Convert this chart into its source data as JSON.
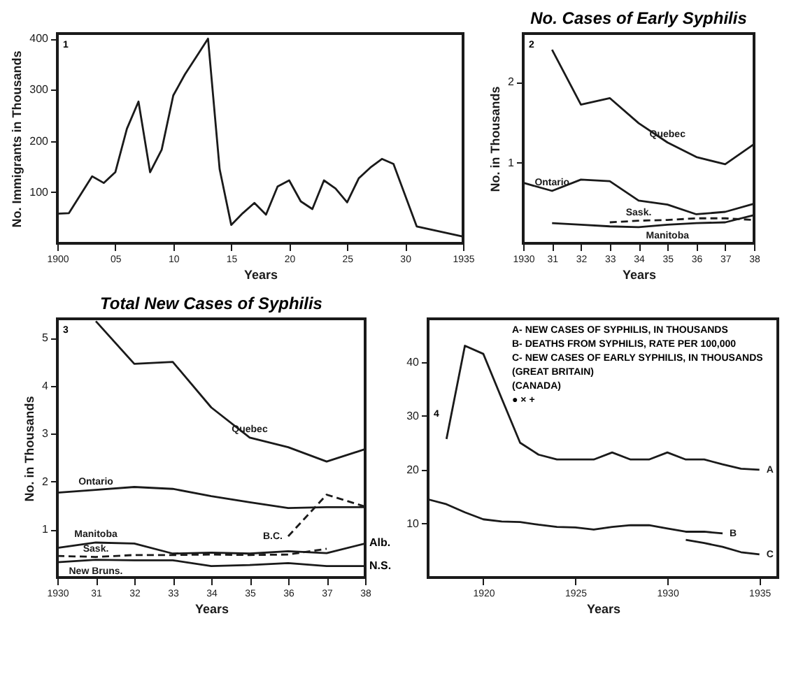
{
  "chart_data": [
    {
      "type": "line",
      "xlabel": "Years",
      "ylabel": "No. Immigrants in Thousands",
      "xlim": [
        1900,
        1935
      ],
      "ylim": [
        0,
        410
      ],
      "xticks": [
        1900,
        {
          "value": 1905,
          "label": "05"
        },
        {
          "value": 1910,
          "label": "10"
        },
        {
          "value": 1915,
          "label": "15"
        },
        {
          "value": 1920,
          "label": "20"
        },
        {
          "value": 1925,
          "label": "25"
        },
        {
          "value": 1930,
          "label": "30"
        },
        1935
      ],
      "yticks": [
        100,
        200,
        300,
        400
      ],
      "annotations": [
        "1"
      ],
      "series": [
        {
          "color": "#1a1a1a",
          "x": [
            1900,
            1901,
            1903,
            1904,
            1905,
            1906,
            1907,
            1908,
            1909,
            1910,
            1911,
            1912,
            1913,
            1914,
            1915,
            1916,
            1917,
            1918,
            1919,
            1920,
            1921,
            1922,
            1923,
            1924,
            1925,
            1926,
            1927,
            1928,
            1929,
            1931,
            1935
          ],
          "values": [
            58,
            59,
            131,
            118,
            139,
            224,
            277,
            139,
            183,
            289,
            330,
            365,
            400,
            145,
            36,
            59,
            79,
            56,
            111,
            123,
            82,
            67,
            123,
            107,
            80,
            127,
            148,
            165,
            155,
            33,
            13
          ]
        }
      ]
    },
    {
      "type": "line",
      "title": "No. Cases of Early Syphilis",
      "xlabel": "Years",
      "ylabel": "No. in Thousands",
      "xlim": [
        1930,
        1938
      ],
      "ylim": [
        0,
        2.6
      ],
      "xticks": [
        1930,
        {
          "value": 1931,
          "label": "31"
        },
        {
          "value": 1932,
          "label": "32"
        },
        {
          "value": 1933,
          "label": "33"
        },
        {
          "value": 1934,
          "label": "34"
        },
        {
          "value": 1935,
          "label": "35"
        },
        {
          "value": 1936,
          "label": "36"
        },
        {
          "value": 1937,
          "label": "37"
        },
        {
          "value": 1938,
          "label": "38"
        }
      ],
      "yticks": [
        1,
        2
      ],
      "annotations": [
        "2"
      ],
      "series": [
        {
          "name": "Quebec",
          "color": "#1a1a1a",
          "x": [
            1931,
            1932,
            1933,
            1934,
            1935,
            1936,
            1937,
            1938
          ],
          "values": [
            2.4,
            1.72,
            1.8,
            1.49,
            1.25,
            1.07,
            0.98,
            1.23
          ]
        },
        {
          "name": "Ontario",
          "color": "#1a1a1a",
          "x": [
            1930,
            1931,
            1932,
            1933,
            1934,
            1935,
            1936,
            1937,
            1938
          ],
          "values": [
            0.75,
            0.65,
            0.79,
            0.77,
            0.53,
            0.48,
            0.36,
            0.39,
            0.49
          ]
        },
        {
          "name": "Manitoba",
          "color": "#1a1a1a",
          "x": [
            1931,
            1932,
            1933,
            1934,
            1935,
            1936,
            1937,
            1938
          ],
          "values": [
            0.25,
            0.23,
            0.21,
            0.2,
            0.23,
            0.25,
            0.26,
            0.35
          ]
        },
        {
          "name": "Sask.",
          "color": "#1a1a1a",
          "line_style": "dashed",
          "x": [
            1933,
            1934,
            1935,
            1936,
            1937,
            1938
          ],
          "values": [
            0.26,
            0.28,
            0.29,
            0.31,
            0.31,
            0.29
          ]
        }
      ]
    },
    {
      "type": "line",
      "title": "Total New Cases of Syphilis",
      "xlabel": "Years",
      "ylabel": "No. in Thousands",
      "xlim": [
        1930,
        1938
      ],
      "ylim": [
        0,
        5.4
      ],
      "xticks": [
        1930,
        {
          "value": 1931,
          "label": "31"
        },
        {
          "value": 1932,
          "label": "32"
        },
        {
          "value": 1933,
          "label": "33"
        },
        {
          "value": 1934,
          "label": "34"
        },
        {
          "value": 1935,
          "label": "35"
        },
        {
          "value": 1936,
          "label": "36"
        },
        {
          "value": 1937,
          "label": "37"
        },
        {
          "value": 1938,
          "label": "38"
        }
      ],
      "yticks": [
        1,
        2,
        3,
        4,
        5
      ],
      "annotations": [
        "3",
        {
          "text": "Alb.",
          "x": 1938,
          "y": 0.71
        },
        {
          "text": "N.S.",
          "x": 1938,
          "y": 0.24
        }
      ],
      "series": [
        {
          "name": "Quebec",
          "color": "#1a1a1a",
          "x": [
            1931,
            1932,
            1933,
            1934,
            1935,
            1936,
            1937,
            1938
          ],
          "values": [
            5.35,
            4.46,
            4.5,
            3.55,
            2.92,
            2.72,
            2.42,
            2.68
          ]
        },
        {
          "name": "Ontario",
          "color": "#1a1a1a",
          "x": [
            1930,
            1931,
            1932,
            1933,
            1934,
            1935,
            1936,
            1937,
            1938
          ],
          "values": [
            1.77,
            1.83,
            1.89,
            1.85,
            1.7,
            1.57,
            1.45,
            1.47,
            1.47
          ]
        },
        {
          "name": "B.C.",
          "color": "#1a1a1a",
          "line_style": "dashed",
          "x": [
            1936,
            1937,
            1938
          ],
          "values": [
            0.86,
            1.73,
            1.48
          ]
        },
        {
          "name": "Manitoba",
          "color": "#1a1a1a",
          "x": [
            1930,
            1931,
            1932,
            1933,
            1934,
            1935,
            1936,
            1937,
            1938
          ],
          "values": [
            0.62,
            0.73,
            0.71,
            0.5,
            0.52,
            0.5,
            0.55,
            0.51,
            0.71
          ]
        },
        {
          "name": "Sask.",
          "color": "#1a1a1a",
          "line_style": "dashed",
          "x": [
            1930,
            1931,
            1932,
            1933,
            1934,
            1935,
            1936,
            1937
          ],
          "values": [
            0.45,
            0.43,
            0.47,
            0.47,
            0.48,
            0.47,
            0.48,
            0.6
          ]
        },
        {
          "name": "New Bruns.",
          "color": "#1a1a1a",
          "x": [
            1930,
            1931,
            1932,
            1933,
            1934,
            1935,
            1936,
            1937,
            1938
          ],
          "values": [
            0.32,
            0.37,
            0.36,
            0.36,
            0.24,
            0.26,
            0.3,
            0.24,
            0.24
          ]
        }
      ]
    },
    {
      "type": "line",
      "xlabel": "Years",
      "xlim": [
        1917,
        1936
      ],
      "ylim": [
        0,
        48
      ],
      "xticks": [
        1920,
        1925,
        1930,
        1935
      ],
      "yticks": [
        10,
        20,
        30,
        40
      ],
      "annotations": [
        "A- NEW CASES OF SYPHILIS, IN THOUSANDS",
        "B- DEATHS FROM SYPHILIS, RATE PER 100,000",
        "C- NEW CASES OF EARLY SYPHILIS, IN THOUSANDS",
        "(GREAT BRITAIN)",
        "(CANADA)",
        "● × +",
        "4"
      ],
      "series": [
        {
          "name": "A",
          "color": "#1a1a1a",
          "x": [
            1918,
            1919,
            1920,
            1921,
            1922,
            1923,
            1924,
            1925,
            1926,
            1927,
            1928,
            1929,
            1930,
            1931,
            1932,
            1933,
            1934,
            1935
          ],
          "values": [
            25.7,
            43,
            41.5,
            33.2,
            25,
            22.8,
            21.9,
            21.9,
            21.9,
            23.2,
            21.9,
            21.9,
            23.2,
            21.9,
            21.9,
            21,
            20.2,
            20
          ]
        },
        {
          "name": "B",
          "color": "#1a1a1a",
          "x": [
            1917,
            1918,
            1919,
            1920,
            1921,
            1922,
            1923,
            1924,
            1925,
            1926,
            1927,
            1928,
            1929,
            1930,
            1931,
            1932,
            1933
          ],
          "values": [
            14.5,
            13.6,
            12.1,
            10.8,
            10.4,
            10.3,
            9.8,
            9.4,
            9.3,
            8.9,
            9.4,
            9.7,
            9.7,
            9.1,
            8.5,
            8.5,
            8.2
          ]
        },
        {
          "name": "C",
          "color": "#1a1a1a",
          "x": [
            1931,
            1932,
            1933,
            1934,
            1935
          ],
          "values": [
            7.0,
            6.4,
            5.7,
            4.7,
            4.3
          ]
        }
      ]
    }
  ]
}
